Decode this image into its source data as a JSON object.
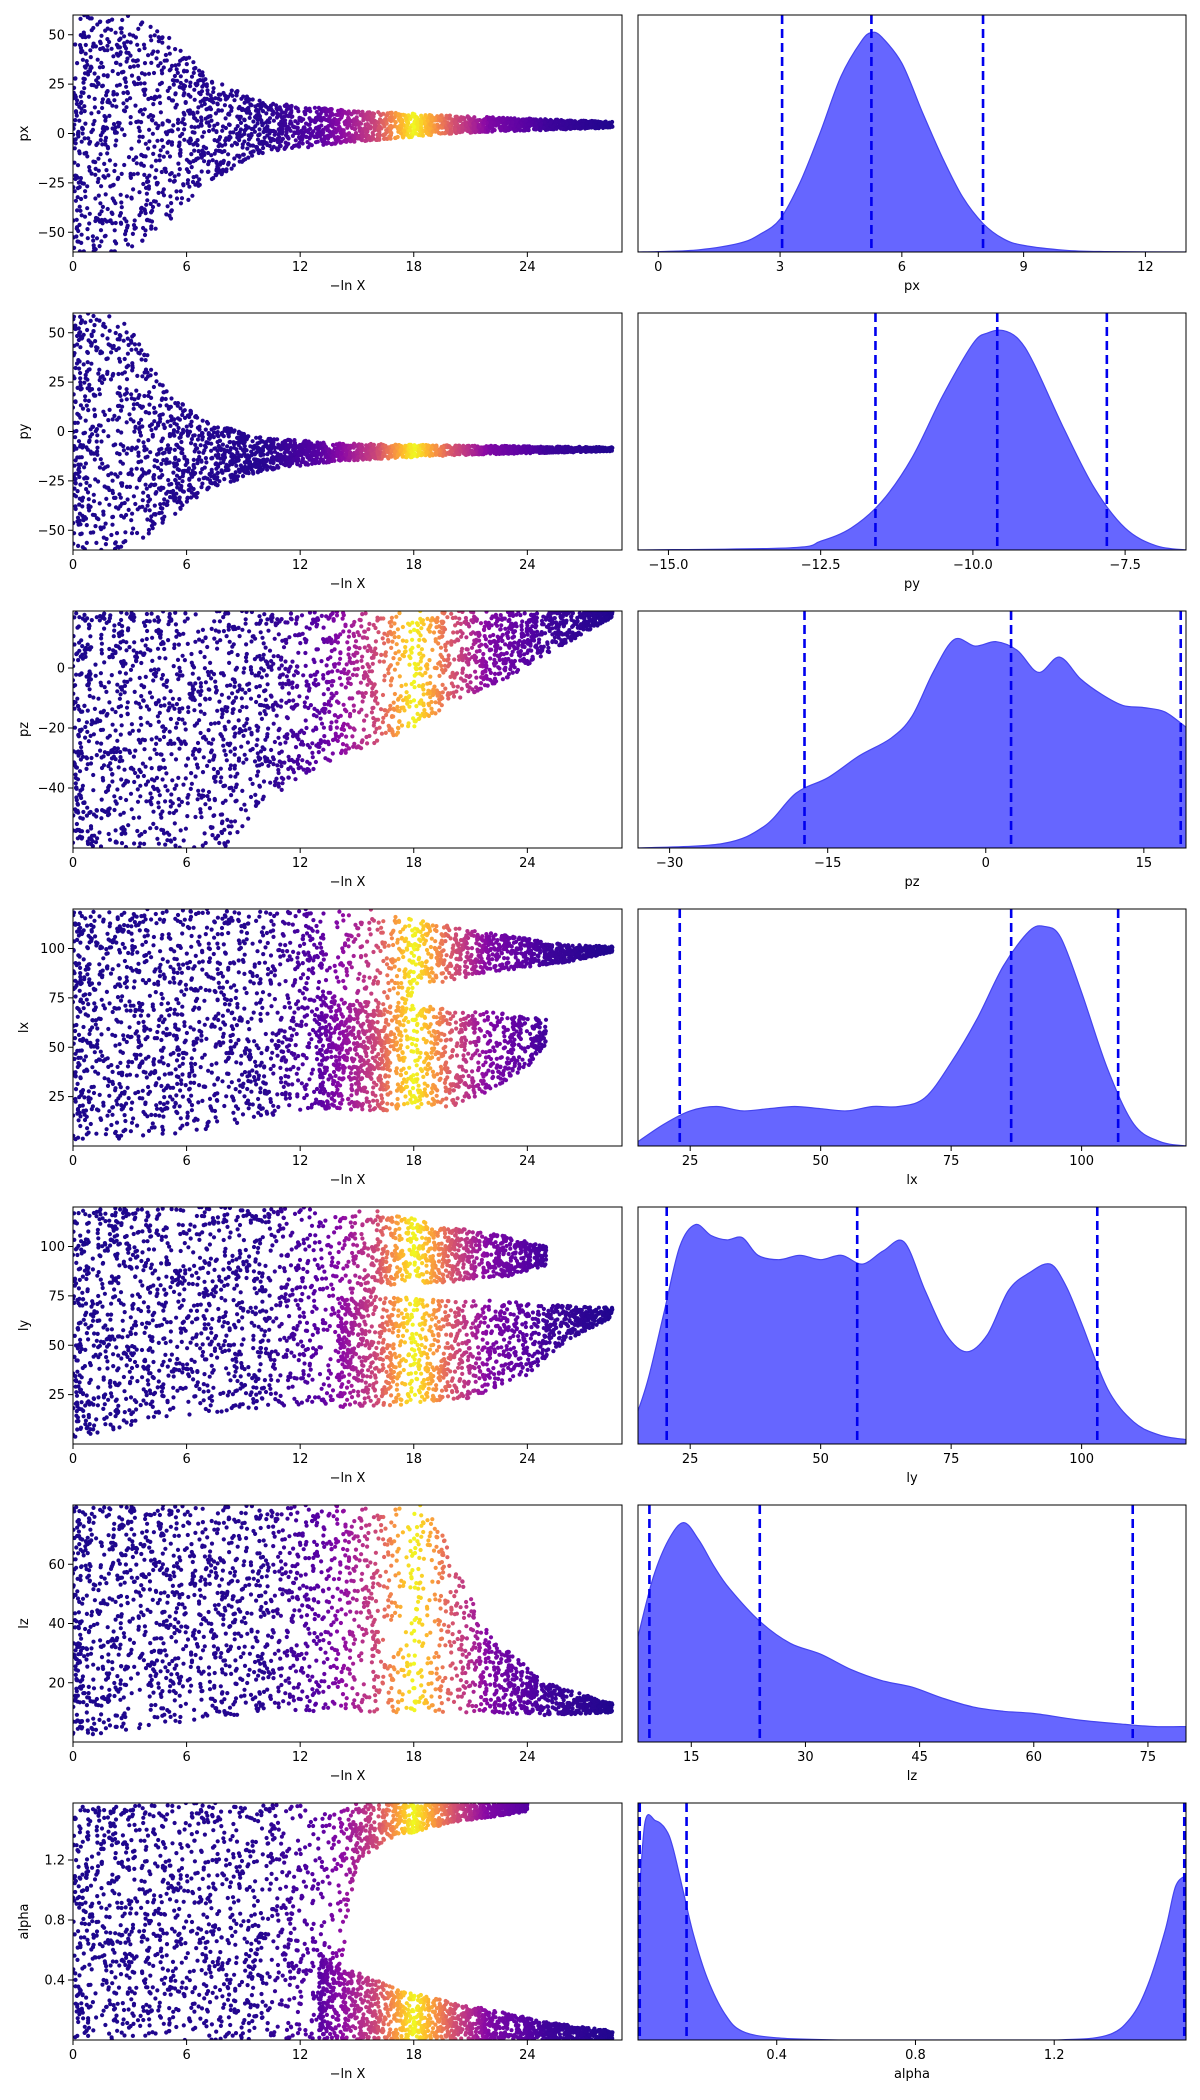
{
  "chart_data": [
    {
      "type": "scatter",
      "xlabel": "−ln X",
      "ylabel": "px",
      "xlim": [
        0,
        29
      ],
      "ylim": [
        -60,
        60
      ],
      "xticks": [
        0,
        6,
        12,
        18,
        24
      ],
      "yticks": [
        -50,
        -25,
        0,
        25,
        50
      ],
      "spread": {
        "center": 5,
        "profile": [
          [
            0,
            -60,
            60
          ],
          [
            2,
            -60,
            60
          ],
          [
            3,
            -60,
            60
          ],
          [
            5,
            -45,
            50
          ],
          [
            7,
            -25,
            30
          ],
          [
            10,
            -10,
            16
          ],
          [
            14,
            -5,
            12
          ],
          [
            20,
            0,
            9
          ],
          [
            28.5,
            3,
            6
          ]
        ]
      },
      "color_profile": [
        [
          0,
          0.03
        ],
        [
          10,
          0.05
        ],
        [
          13,
          0.15
        ],
        [
          16,
          0.5
        ],
        [
          18,
          1
        ],
        [
          20,
          0.55
        ],
        [
          22,
          0.25
        ],
        [
          25,
          0.1
        ],
        [
          29,
          0.03
        ]
      ]
    },
    {
      "type": "area",
      "xlabel": "px",
      "xlim": [
        -0.5,
        13
      ],
      "xticks": [
        0,
        3,
        6,
        9,
        12
      ],
      "density": {
        "x": [
          -0.5,
          0,
          1,
          2,
          2.5,
          3,
          3.5,
          4,
          4.5,
          5,
          5.25,
          5.5,
          6,
          6.5,
          7,
          7.5,
          8,
          8.5,
          9,
          10,
          11,
          13
        ],
        "y": [
          0,
          0.002,
          0.01,
          0.04,
          0.08,
          0.15,
          0.32,
          0.55,
          0.8,
          0.96,
          1,
          0.98,
          0.86,
          0.64,
          0.43,
          0.25,
          0.13,
          0.06,
          0.03,
          0.008,
          0.002,
          0
        ]
      },
      "quantiles": [
        3.05,
        5.25,
        8.0
      ]
    },
    {
      "type": "scatter",
      "xlabel": "−ln X",
      "ylabel": "py",
      "xlim": [
        0,
        29
      ],
      "ylim": [
        -60,
        60
      ],
      "xticks": [
        0,
        6,
        12,
        18,
        24
      ],
      "yticks": [
        -50,
        -25,
        0,
        25,
        50
      ],
      "spread": {
        "center": -9,
        "profile": [
          [
            0,
            -60,
            60
          ],
          [
            2,
            -60,
            60
          ],
          [
            3,
            -60,
            55
          ],
          [
            5,
            -45,
            20
          ],
          [
            7,
            -30,
            5
          ],
          [
            10,
            -20,
            -3
          ],
          [
            14,
            -15,
            -6
          ],
          [
            20,
            -12,
            -7
          ],
          [
            28.5,
            -10,
            -8
          ]
        ]
      },
      "color_profile": [
        [
          0,
          0.03
        ],
        [
          10,
          0.05
        ],
        [
          13,
          0.15
        ],
        [
          16,
          0.5
        ],
        [
          18,
          1
        ],
        [
          20,
          0.55
        ],
        [
          22,
          0.25
        ],
        [
          25,
          0.1
        ],
        [
          29,
          0.03
        ]
      ]
    },
    {
      "type": "area",
      "xlabel": "py",
      "xlim": [
        -15.5,
        -6.5
      ],
      "xticks": [
        -15,
        -12.5,
        -10,
        -7.5
      ],
      "density": {
        "x": [
          -15.5,
          -13,
          -12.5,
          -12,
          -11.5,
          -11,
          -10.5,
          -10,
          -9.75,
          -9.5,
          -9.25,
          -9,
          -8.5,
          -8,
          -7.5,
          -7,
          -6.5
        ],
        "y": [
          0,
          0.01,
          0.04,
          0.1,
          0.22,
          0.42,
          0.7,
          0.94,
          0.99,
          1,
          0.96,
          0.85,
          0.55,
          0.28,
          0.1,
          0.02,
          0
        ]
      },
      "quantiles": [
        -11.6,
        -9.6,
        -7.8
      ]
    },
    {
      "type": "scatter",
      "xlabel": "−ln X",
      "ylabel": "pz",
      "xlim": [
        0,
        29
      ],
      "ylim": [
        -60,
        19
      ],
      "xticks": [
        0,
        6,
        12,
        18,
        24
      ],
      "yticks": [
        -40,
        -20,
        0
      ],
      "spread": {
        "profile": [
          [
            0,
            -60,
            19
          ],
          [
            5,
            -60,
            19
          ],
          [
            8,
            -60,
            19
          ],
          [
            10,
            -45,
            19
          ],
          [
            13,
            -33,
            19
          ],
          [
            16,
            -25,
            19
          ],
          [
            18,
            -20,
            19
          ],
          [
            20,
            -12,
            19
          ],
          [
            23,
            -3,
            19
          ],
          [
            26,
            8,
            19
          ],
          [
            28.5,
            17,
            19
          ]
        ]
      },
      "color_profile": [
        [
          0,
          0.03
        ],
        [
          10,
          0.05
        ],
        [
          13,
          0.15
        ],
        [
          16,
          0.5
        ],
        [
          18,
          1
        ],
        [
          20,
          0.55
        ],
        [
          22,
          0.25
        ],
        [
          25,
          0.1
        ],
        [
          29,
          0.03
        ]
      ]
    },
    {
      "type": "area",
      "xlabel": "pz",
      "xlim": [
        -33,
        19
      ],
      "xticks": [
        -30,
        -15,
        0,
        15
      ],
      "density": {
        "x": [
          -33,
          -25,
          -21,
          -18,
          -15,
          -12,
          -9,
          -7,
          -5,
          -3,
          -1,
          1,
          3,
          5,
          7,
          9,
          11,
          13,
          15,
          17,
          19
        ],
        "y": [
          0,
          0.02,
          0.1,
          0.25,
          0.32,
          0.42,
          0.5,
          0.6,
          0.8,
          0.95,
          0.92,
          0.94,
          0.9,
          0.8,
          0.87,
          0.77,
          0.7,
          0.65,
          0.64,
          0.62,
          0.55
        ]
      },
      "quantiles": [
        -17.2,
        2.4,
        18.5
      ]
    },
    {
      "type": "scatter",
      "xlabel": "−ln X",
      "ylabel": "lx",
      "xlim": [
        0,
        29
      ],
      "ylim": [
        0,
        120
      ],
      "xticks": [
        0,
        6,
        12,
        18,
        24
      ],
      "yticks": [
        25,
        50,
        75,
        100
      ],
      "bands": [
        {
          "profile": [
            [
              0,
              2,
              120
            ],
            [
              5,
              5,
              120
            ],
            [
              10,
              14,
              120
            ],
            [
              13,
              18,
              120
            ],
            [
              16,
              20,
              120
            ],
            [
              18,
              80,
              115
            ],
            [
              22,
              88,
              108
            ],
            [
              26,
              93,
              102
            ],
            [
              28.5,
              98,
              101
            ]
          ]
        },
        {
          "profile": [
            [
              13,
              18,
              75
            ],
            [
              17,
              18,
              72
            ],
            [
              20,
              20,
              70
            ],
            [
              22,
              28,
              68
            ],
            [
              24,
              40,
              66
            ],
            [
              25,
              52,
              64
            ]
          ]
        }
      ],
      "color_profile": [
        [
          0,
          0.03
        ],
        [
          10,
          0.05
        ],
        [
          13,
          0.15
        ],
        [
          16,
          0.5
        ],
        [
          18,
          1
        ],
        [
          20,
          0.55
        ],
        [
          22,
          0.25
        ],
        [
          25,
          0.1
        ],
        [
          29,
          0.03
        ]
      ]
    },
    {
      "type": "area",
      "xlabel": "lx",
      "xlim": [
        15,
        120
      ],
      "xticks": [
        25,
        50,
        75,
        100
      ],
      "density": {
        "x": [
          15,
          20,
          25,
          30,
          35,
          40,
          45,
          50,
          55,
          60,
          65,
          70,
          75,
          80,
          85,
          90,
          93,
          96,
          100,
          105,
          110,
          115,
          120
        ],
        "y": [
          0.02,
          0.1,
          0.16,
          0.18,
          0.16,
          0.17,
          0.18,
          0.17,
          0.16,
          0.18,
          0.18,
          0.22,
          0.38,
          0.58,
          0.82,
          0.98,
          1,
          0.95,
          0.7,
          0.35,
          0.1,
          0.02,
          0
        ]
      },
      "quantiles": [
        23,
        86.5,
        107
      ]
    },
    {
      "type": "scatter",
      "xlabel": "−ln X",
      "ylabel": "ly",
      "xlim": [
        0,
        29
      ],
      "ylim": [
        0,
        120
      ],
      "xticks": [
        0,
        6,
        12,
        18,
        24
      ],
      "yticks": [
        25,
        50,
        75,
        100
      ],
      "bands": [
        {
          "profile": [
            [
              0,
              2,
              120
            ],
            [
              5,
              14,
              120
            ],
            [
              10,
              18,
              120
            ],
            [
              14,
              20,
              120
            ],
            [
              16,
              80,
              118
            ],
            [
              20,
              82,
              110
            ],
            [
              23,
              85,
              105
            ],
            [
              25,
              90,
              100
            ]
          ]
        },
        {
          "profile": [
            [
              14,
              18,
              75
            ],
            [
              18,
              20,
              74
            ],
            [
              21,
              23,
              73
            ],
            [
              24,
              35,
              72
            ],
            [
              26,
              52,
              70
            ],
            [
              28.5,
              64,
              69
            ]
          ]
        }
      ],
      "color_profile": [
        [
          0,
          0.03
        ],
        [
          10,
          0.05
        ],
        [
          13,
          0.15
        ],
        [
          16,
          0.5
        ],
        [
          18,
          1
        ],
        [
          20,
          0.55
        ],
        [
          22,
          0.25
        ],
        [
          25,
          0.1
        ],
        [
          29,
          0.03
        ]
      ]
    },
    {
      "type": "area",
      "xlabel": "ly",
      "xlim": [
        15,
        120
      ],
      "xticks": [
        25,
        50,
        75,
        100
      ],
      "density": {
        "x": [
          15,
          17,
          20,
          23,
          26,
          29,
          32,
          35,
          38,
          42,
          46,
          50,
          54,
          58,
          62,
          66,
          70,
          74,
          78,
          82,
          86,
          90,
          94,
          97,
          100,
          105,
          110,
          115,
          120
        ],
        "y": [
          0.15,
          0.3,
          0.6,
          0.9,
          1,
          0.95,
          0.93,
          0.94,
          0.86,
          0.84,
          0.86,
          0.84,
          0.86,
          0.82,
          0.88,
          0.92,
          0.7,
          0.5,
          0.42,
          0.5,
          0.7,
          0.78,
          0.82,
          0.72,
          0.55,
          0.25,
          0.1,
          0.04,
          0.02
        ]
      },
      "quantiles": [
        20.5,
        57,
        103
      ]
    },
    {
      "type": "scatter",
      "xlabel": "−ln X",
      "ylabel": "lz",
      "xlim": [
        0,
        29
      ],
      "ylim": [
        0,
        80
      ],
      "xticks": [
        0,
        6,
        12,
        18,
        24
      ],
      "yticks": [
        20,
        40,
        60
      ],
      "spread": {
        "profile": [
          [
            0,
            1,
            80
          ],
          [
            5,
            6,
            80
          ],
          [
            8,
            9,
            80
          ],
          [
            14,
            10,
            80
          ],
          [
            18,
            10,
            80
          ],
          [
            19,
            10,
            80
          ],
          [
            20,
            10,
            62
          ],
          [
            22,
            10,
            36
          ],
          [
            25,
            9,
            20
          ],
          [
            28.5,
            10,
            13
          ]
        ]
      },
      "color_profile": [
        [
          0,
          0.03
        ],
        [
          10,
          0.05
        ],
        [
          13,
          0.15
        ],
        [
          16,
          0.5
        ],
        [
          18,
          1
        ],
        [
          20,
          0.55
        ],
        [
          22,
          0.25
        ],
        [
          25,
          0.1
        ],
        [
          29,
          0.03
        ]
      ]
    },
    {
      "type": "area",
      "xlabel": "lz",
      "xlim": [
        8,
        80
      ],
      "xticks": [
        15,
        30,
        45,
        60,
        75
      ],
      "density": {
        "x": [
          8,
          10,
          12,
          14,
          16,
          18,
          20,
          24,
          28,
          32,
          36,
          40,
          44,
          48,
          52,
          56,
          60,
          66,
          72,
          76,
          80
        ],
        "y": [
          0.48,
          0.75,
          0.92,
          1,
          0.92,
          0.8,
          0.7,
          0.55,
          0.45,
          0.4,
          0.33,
          0.28,
          0.25,
          0.2,
          0.16,
          0.14,
          0.13,
          0.1,
          0.08,
          0.07,
          0.07
        ]
      },
      "quantiles": [
        9.5,
        24,
        73
      ]
    },
    {
      "type": "scatter",
      "xlabel": "−ln X",
      "ylabel": "alpha",
      "xlim": [
        0,
        29
      ],
      "ylim": [
        0,
        1.58
      ],
      "xticks": [
        0,
        6,
        12,
        18,
        24
      ],
      "yticks": [
        0.4,
        0.8,
        1.2
      ],
      "bands": [
        {
          "profile": [
            [
              0,
              0,
              1.58
            ],
            [
              10,
              0,
              1.58
            ],
            [
              12,
              0,
              1.58
            ],
            [
              13,
              0,
              1.58
            ],
            [
              14,
              0.35,
              1.58
            ],
            [
              15,
              1.18,
              1.58
            ],
            [
              17,
              1.35,
              1.58
            ],
            [
              20,
              1.45,
              1.58
            ],
            [
              24,
              1.52,
              1.58
            ]
          ]
        },
        {
          "profile": [
            [
              13,
              0,
              0.58
            ],
            [
              15,
              0,
              0.45
            ],
            [
              17,
              0,
              0.35
            ],
            [
              20,
              0,
              0.25
            ],
            [
              23,
              0,
              0.18
            ],
            [
              25,
              0,
              0.12
            ],
            [
              28.5,
              0,
              0.06
            ]
          ]
        }
      ],
      "color_profile": [
        [
          0,
          0.03
        ],
        [
          10,
          0.05
        ],
        [
          13,
          0.15
        ],
        [
          16,
          0.5
        ],
        [
          18,
          1
        ],
        [
          20,
          0.55
        ],
        [
          22,
          0.25
        ],
        [
          25,
          0.1
        ],
        [
          29,
          0.03
        ]
      ]
    },
    {
      "type": "area",
      "xlabel": "alpha",
      "xlim": [
        0,
        1.58
      ],
      "xticks": [
        0.4,
        0.8,
        1.2
      ],
      "density": {
        "x": [
          0,
          0.02,
          0.05,
          0.08,
          0.1,
          0.13,
          0.16,
          0.2,
          0.25,
          0.3,
          0.4,
          0.6,
          0.9,
          1.2,
          1.35,
          1.42,
          1.47,
          1.52,
          1.55,
          1.58
        ],
        "y": [
          0.55,
          0.99,
          1,
          0.96,
          0.88,
          0.68,
          0.48,
          0.28,
          0.12,
          0.04,
          0.01,
          0,
          0,
          0,
          0.02,
          0.1,
          0.25,
          0.5,
          0.7,
          0.75
        ]
      },
      "quantiles": [
        0.005,
        0.14,
        1.575
      ]
    }
  ]
}
